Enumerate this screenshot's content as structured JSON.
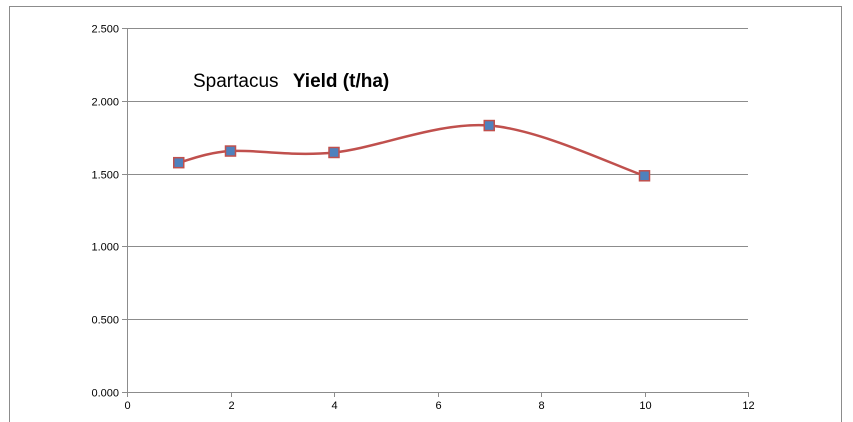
{
  "chart_data": {
    "type": "line",
    "title": {
      "plain": "Spartacus",
      "bold": "Yield (t/ha)"
    },
    "xlabel": "",
    "ylabel": "",
    "xlim": [
      0,
      12
    ],
    "ylim": [
      0,
      2.5
    ],
    "x_ticks": [
      0,
      2,
      4,
      6,
      8,
      10,
      12
    ],
    "y_ticks": [
      0,
      0.5,
      1.0,
      1.5,
      2.0,
      2.5
    ],
    "y_tick_labels": [
      "0.000",
      "0.500",
      "1.000",
      "1.500",
      "2.000",
      "2.500"
    ],
    "x_tick_labels": [
      "0",
      "2",
      "4",
      "6",
      "8",
      "10",
      "12"
    ],
    "grid": true,
    "legend": "none",
    "smooth": true,
    "series": [
      {
        "line_color": "#c0504d",
        "marker_color": "#4f81bd",
        "marker": "square",
        "points": [
          {
            "x": 1,
            "y": 1.575
          },
          {
            "x": 2,
            "y": 1.655
          },
          {
            "x": 4,
            "y": 1.645
          },
          {
            "x": 7,
            "y": 1.83
          },
          {
            "x": 10,
            "y": 1.485
          }
        ]
      }
    ]
  }
}
